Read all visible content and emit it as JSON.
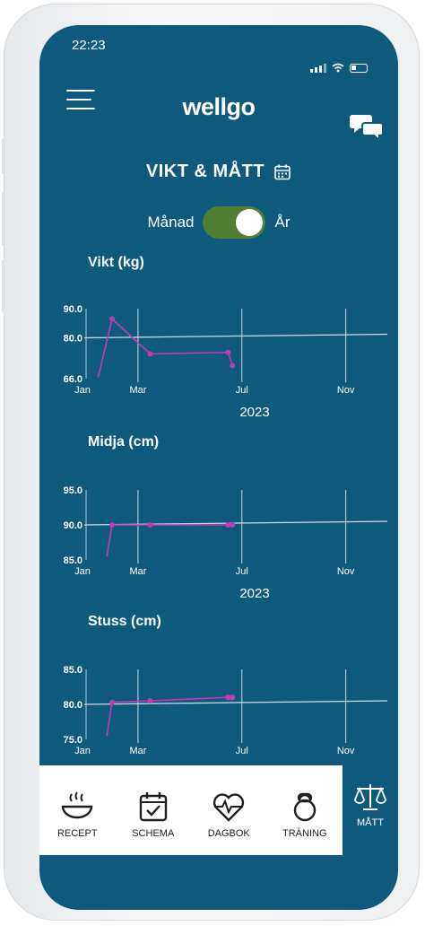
{
  "status": {
    "time": "22:23"
  },
  "header": {
    "logo": "wellgo"
  },
  "page": {
    "title": "VIKT & MÅTT"
  },
  "period_toggle": {
    "left_label": "Månad",
    "right_label": "År",
    "selected": "År"
  },
  "colors": {
    "background": "#0f5a7c",
    "accent_line": "#c13bb5",
    "toggle_on": "#4f7f33"
  },
  "charts": [
    {
      "section_title": "Vikt (kg)",
      "year": "2023",
      "chart_data": {
        "type": "line",
        "title": "Vikt (kg)",
        "ylim": [
          66,
          90
        ],
        "y_ticks": [
          "90.0",
          "80.0",
          "66.0"
        ],
        "x_ticks": [
          "Jan",
          "Mar",
          "Jul",
          "Nov"
        ],
        "x_title": "2023",
        "baseline": 80.0,
        "series": [
          {
            "points": [
              {
                "x": "Jan 15",
                "y": 66.5
              },
              {
                "x": "Feb 1",
                "y": 86.5
              },
              {
                "x": "Mar 15",
                "y": 74.5
              },
              {
                "x": "Jun 15",
                "y": 75
              },
              {
                "x": "Jun 20",
                "y": 70.5
              }
            ]
          }
        ]
      }
    },
    {
      "section_title": "Midja (cm)",
      "year": "2023",
      "chart_data": {
        "type": "line",
        "title": "Midja (cm)",
        "ylim": [
          85,
          95
        ],
        "y_ticks": [
          "95.0",
          "90.0",
          "85.0"
        ],
        "x_ticks": [
          "Jan",
          "Mar",
          "Jul",
          "Nov"
        ],
        "x_title": "2023",
        "baseline": 90.0,
        "series": [
          {
            "points": [
              {
                "x": "Jan 25",
                "y": 85.5
              },
              {
                "x": "Feb 1",
                "y": 90
              },
              {
                "x": "Mar 15",
                "y": 90
              },
              {
                "x": "Jun 15",
                "y": 90
              },
              {
                "x": "Jun 20",
                "y": 90
              }
            ]
          }
        ]
      }
    },
    {
      "section_title": "Stuss (cm)",
      "year": "2023",
      "chart_data": {
        "type": "line",
        "title": "Stuss (cm)",
        "ylim": [
          75,
          85
        ],
        "y_ticks": [
          "85.0",
          "80.0",
          "75.0"
        ],
        "x_ticks": [
          "Jan",
          "Mar",
          "Jul",
          "Nov"
        ],
        "x_title": "2023",
        "baseline": 80.0,
        "series": [
          {
            "points": [
              {
                "x": "Jan 25",
                "y": 75.5
              },
              {
                "x": "Feb 1",
                "y": 80.3
              },
              {
                "x": "Mar 15",
                "y": 80.5
              },
              {
                "x": "Jun 15",
                "y": 81
              },
              {
                "x": "Jun 20",
                "y": 81
              }
            ]
          }
        ]
      }
    }
  ],
  "bottom_nav": {
    "items": [
      {
        "label": "RECEPT",
        "icon": "bowl-icon"
      },
      {
        "label": "SCHEMA",
        "icon": "calendar-check-icon"
      },
      {
        "label": "DAGBOK",
        "icon": "heart-pulse-icon"
      },
      {
        "label": "TRÄNING",
        "icon": "kettlebell-icon"
      }
    ],
    "active": {
      "label": "MÅTT",
      "icon": "scale-icon"
    }
  }
}
